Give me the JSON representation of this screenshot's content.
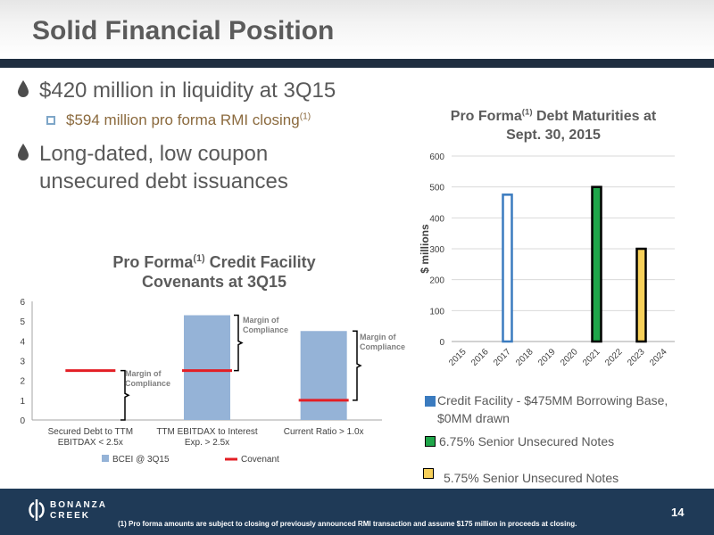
{
  "slide": {
    "title": "Solid Financial Position",
    "page_number": "14",
    "footnote": "(1) Pro forma amounts are subject to closing of previously announced RMI transaction and assume $175 million in proceeds at closing.",
    "logo_line1": "BONANZA",
    "logo_line2": "CREEK"
  },
  "bullets": {
    "b1": "$420 million in liquidity at 3Q15",
    "sub1": "$594 million pro forma RMI closing",
    "sub1_sup": "(1)",
    "b2_line1": "Long-dated, low coupon",
    "b2_line2": "unsecured debt issuances"
  },
  "chart_data": [
    {
      "type": "bar",
      "title_pre": "Pro Forma",
      "title_sup": "(1)",
      "title_post": " Credit Facility",
      "title_line2": "Covenants at 3Q15",
      "categories": [
        "Secured Debt to TTM EBITDAX < 2.5x",
        "TTM EBITDAX to Interest Exp. > 2.5x",
        "Current Ratio > 1.0x"
      ],
      "category_lines": [
        [
          "Secured Debt to TTM",
          "EBITDAX < 2.5x"
        ],
        [
          "TTM EBITDAX to Interest",
          "Exp. > 2.5x"
        ],
        [
          "Current Ratio > 1.0x"
        ]
      ],
      "series": [
        {
          "name": "BCEI @ 3Q15",
          "values": [
            0,
            5.3,
            4.5
          ],
          "color": "#95b3d7"
        },
        {
          "name": "Covenant",
          "values": [
            2.5,
            2.5,
            1.0
          ],
          "color": "#e31e24"
        }
      ],
      "ylim": [
        0,
        6
      ],
      "yticks": [
        0,
        1,
        2,
        3,
        4,
        5,
        6
      ],
      "annotations": [
        {
          "line1": "Margin of",
          "line2": "Compliance"
        },
        {
          "line1": "Margin of",
          "line2": "Compliance"
        },
        {
          "line1": "Margin of",
          "line2": "Compliance"
        }
      ],
      "legend_position": "bottom"
    },
    {
      "type": "bar",
      "title_pre": "Pro Forma",
      "title_sup": "(1)",
      "title_post": " Debt Maturities at",
      "title_line2": "Sept. 30, 2015",
      "ylabel": "$ millions",
      "categories": [
        "2015",
        "2016",
        "2017",
        "2018",
        "2019",
        "2020",
        "2021",
        "2022",
        "2023",
        "2024"
      ],
      "series": [
        {
          "name": "Credit Facility - $475MM Borrowing Base, $0MM drawn",
          "name_line1": "Credit Facility - $475MM Borrowing Base,",
          "name_line2": "$0MM drawn",
          "values": [
            0,
            0,
            475,
            0,
            0,
            0,
            0,
            0,
            0,
            0
          ],
          "color": "#3b7bbf",
          "fill": "#ffffff"
        },
        {
          "name": "6.75% Senior Unsecured Notes",
          "values": [
            0,
            0,
            0,
            0,
            0,
            0,
            500,
            0,
            0,
            0
          ],
          "color": "#000000",
          "fill": "#1fa64a"
        },
        {
          "name": "5.75% Senior Unsecured Notes",
          "values": [
            0,
            0,
            0,
            0,
            0,
            0,
            0,
            0,
            300,
            0
          ],
          "color": "#000000",
          "fill": "#f7d05a"
        }
      ],
      "ylim": [
        0,
        600
      ],
      "yticks": [
        0,
        100,
        200,
        300,
        400,
        500,
        600
      ],
      "grid": true,
      "legend_position": "bottom"
    }
  ]
}
